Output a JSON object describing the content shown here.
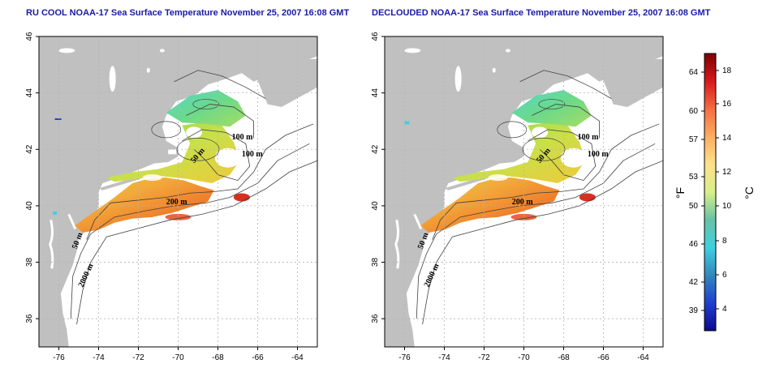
{
  "panels": [
    {
      "title": "RU COOL NOAA-17 Sea Surface Temperature November 25, 2007 16:08 GMT",
      "contour_labels": [
        "100 m",
        "100 m",
        "50 m",
        "200 m",
        "50 m",
        "2000 m"
      ]
    },
    {
      "title": "DECLOUDED NOAA-17 Sea Surface Temperature November 25, 2007 16:08 GMT",
      "contour_labels": [
        "100 m",
        "100 m",
        "50 m",
        "200 m",
        "50 m",
        "2000 m"
      ]
    }
  ],
  "axes": {
    "x_ticks": [
      "-76",
      "-74",
      "-72",
      "-70",
      "-68",
      "-66",
      "-64"
    ],
    "y_ticks": [
      "36",
      "38",
      "40",
      "42",
      "44",
      "46"
    ]
  },
  "colorbar": {
    "fahrenheit_ticks": [
      "64",
      "60",
      "57",
      "53",
      "50",
      "46",
      "42",
      "39"
    ],
    "celsius_ticks": [
      "18",
      "16",
      "14",
      "12",
      "10",
      "8",
      "6",
      "4"
    ],
    "fahrenheit_unit": "°F",
    "celsius_unit": "°C",
    "colors": [
      "#7f0000",
      "#d7191c",
      "#f46d43",
      "#fdae61",
      "#fee08b",
      "#d9ef8b",
      "#66c2a5",
      "#3fd0e0",
      "#3288bd",
      "#1f3fd0",
      "#0a0a8c"
    ]
  },
  "colors": {
    "land": "#c0c0c0",
    "ocean": "#ffffff",
    "title": "#1a1aa6",
    "grid": "#b4b4b4"
  }
}
